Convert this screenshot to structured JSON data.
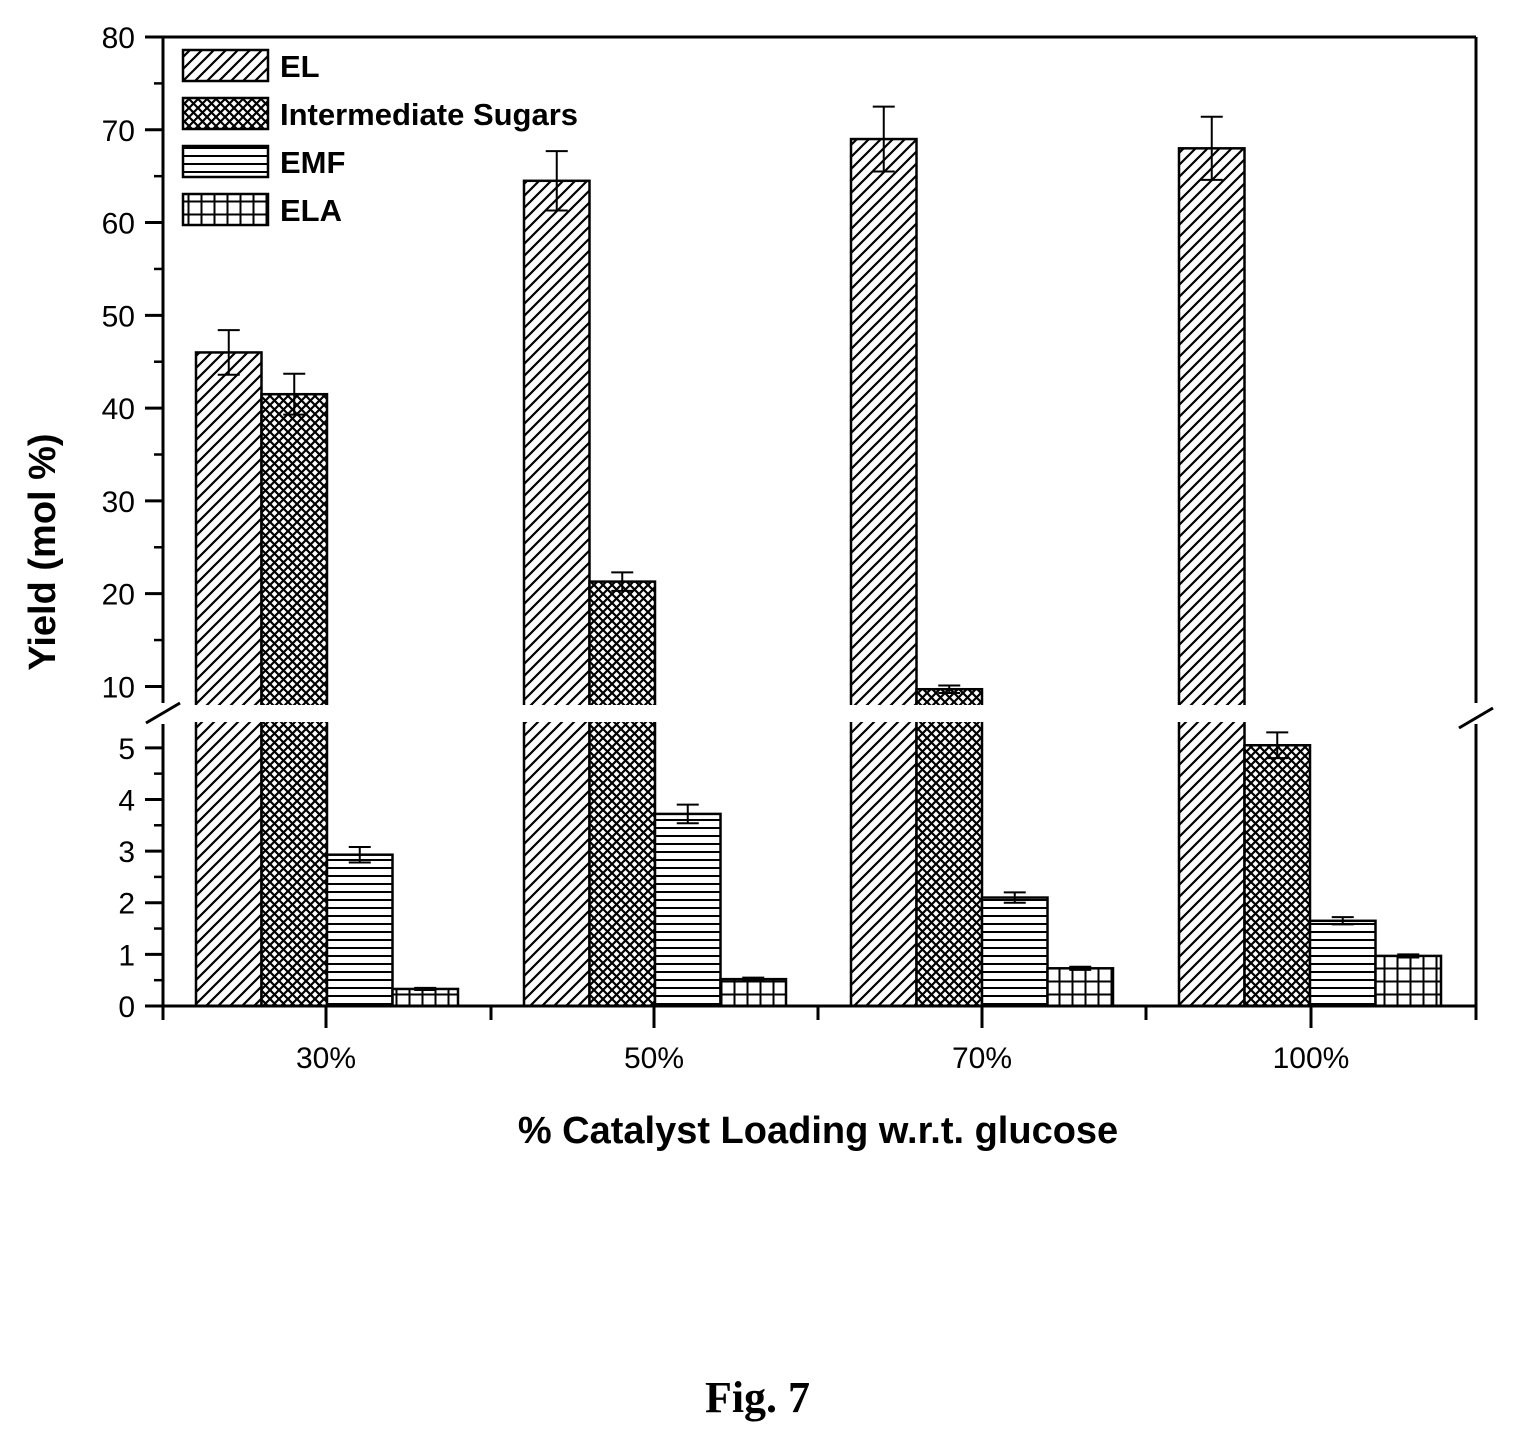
{
  "chart_data": {
    "type": "bar",
    "categories": [
      "30%",
      "50%",
      "70%",
      "100%"
    ],
    "series": [
      {
        "name": "EL",
        "pattern": "diagonal",
        "values": [
          46.0,
          64.5,
          69.0,
          68.0
        ],
        "errors": [
          2.4,
          3.2,
          3.5,
          3.4
        ]
      },
      {
        "name": "Intermediate Sugars",
        "pattern": "crosshatch",
        "values": [
          41.5,
          21.3,
          9.7,
          5.05
        ],
        "errors": [
          2.2,
          1.0,
          0.4,
          0.25
        ]
      },
      {
        "name": "EMF",
        "pattern": "horizontal",
        "values": [
          2.93,
          3.72,
          2.1,
          1.65
        ],
        "errors": [
          0.15,
          0.18,
          0.1,
          0.07
        ]
      },
      {
        "name": "ELA",
        "pattern": "grid",
        "values": [
          0.33,
          0.52,
          0.73,
          0.97
        ],
        "errors": [
          0.02,
          0.03,
          0.03,
          0.03
        ]
      }
    ],
    "xlabel": "% Catalyst Loading w.r.t. glucose",
    "ylabel": "Yield (mol %)",
    "y_axis_break": {
      "lower_range": [
        0,
        5.5
      ],
      "upper_range": [
        8,
        80
      ]
    },
    "yticks_lower": [
      "0",
      "1",
      "2",
      "3",
      "4",
      "5"
    ],
    "yticks_upper": [
      "10",
      "20",
      "30",
      "40",
      "50",
      "60",
      "70",
      "80"
    ],
    "legend_position": "top-left",
    "grid": false
  },
  "caption": "Fig. 7"
}
